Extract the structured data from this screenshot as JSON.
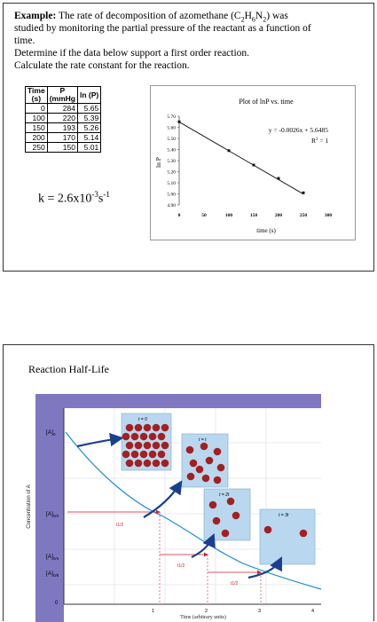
{
  "slide1": {
    "example_label": "Example:",
    "intro_a": " The rate of decomposition of azomethane (C",
    "sub_2a": "2",
    "h": "H",
    "sub_6": "6",
    "n": "N",
    "sub_2b": "2",
    "intro_b": ") was",
    "line2": "studied by monitoring the partial pressure of the reactant as a function of",
    "line3": "time.",
    "line4": "Determine if the data below support a first order reaction.",
    "line5": "Calculate the rate constant for the reaction.",
    "table": {
      "headers": [
        [
          "Time",
          "(s)"
        ],
        [
          "P",
          "(mmHg"
        ],
        [
          "ln (P)"
        ]
      ],
      "rows": [
        [
          "0",
          "284",
          "5.65"
        ],
        [
          "100",
          "220",
          "5.39"
        ],
        [
          "150",
          "193",
          "5.26"
        ],
        [
          "200",
          "170",
          "5.14"
        ],
        [
          "250",
          "150",
          "5.01"
        ]
      ]
    },
    "k_prefix": "k = 2.6x10",
    "k_exp": "-3",
    "k_unit": "s",
    "k_unit_exp": "-1"
  },
  "chart_data": {
    "type": "scatter",
    "title": "Plot of lnP vs. time",
    "xlabel": "time (s)",
    "ylabel": "ln P",
    "xlim": [
      0,
      300
    ],
    "ylim": [
      4.9,
      5.7
    ],
    "x_ticks": [
      "0",
      "50",
      "100",
      "150",
      "200",
      "250",
      "300"
    ],
    "y_ticks": [
      "4.90",
      "5.00",
      "5.10",
      "5.20",
      "5.30",
      "5.40",
      "5.50",
      "5.60",
      "5.70"
    ],
    "x": [
      0,
      100,
      150,
      200,
      250
    ],
    "y": [
      5.65,
      5.39,
      5.26,
      5.14,
      5.01
    ],
    "trendline": {
      "slope": -0.0026,
      "intercept": 5.6485
    },
    "equation": "y = -0.0026x + 5.6485",
    "r2_label": "R",
    "r2_value": " = 1",
    "grid": false
  },
  "slide2": {
    "title": "Reaction Half-Life",
    "y_axis_label": "Concentration of A",
    "x_axis_label": "Time (arbitrary units)",
    "y_levels": [
      "[A]",
      "[A]",
      "[A]",
      "[A]"
    ],
    "y_level_suffix": [
      "0",
      "0/2",
      "0/4",
      "0/8"
    ],
    "x_ticks": [
      "0",
      "1",
      "2",
      "3",
      "4"
    ],
    "t_labels": [
      "t = 0",
      "t = t",
      "t = 2t",
      "t = 3t"
    ],
    "half_life_label": "t1/2",
    "colors": {
      "panel": "#7f78c0",
      "box": "#b9d8f0",
      "curve": "#1a8fd0",
      "arrow": "#1b3f8f",
      "marker": "#d81e2a",
      "molecule": "#a32020"
    }
  }
}
